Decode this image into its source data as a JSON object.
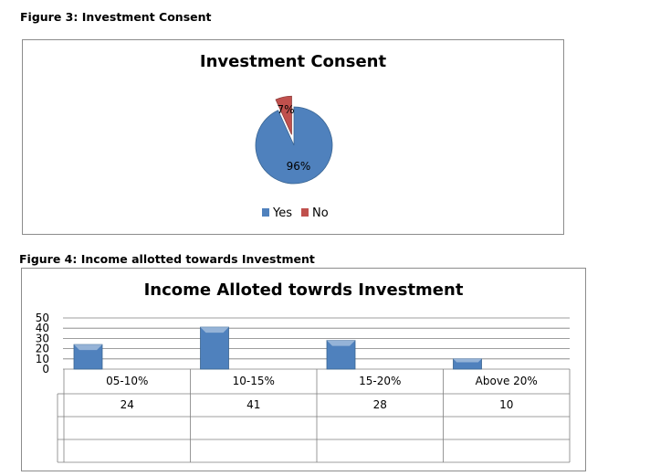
{
  "figure3": {
    "caption": "Figure 3:  Investment Consent",
    "chart_data": {
      "type": "pie",
      "title": "Investment Consent",
      "slices": [
        {
          "name": "Yes",
          "label": "96%",
          "value": 96,
          "color": "#4f81bd"
        },
        {
          "name": "No",
          "label": "7%",
          "value": 7,
          "color": "#c0504d"
        }
      ],
      "legend": "bottom"
    }
  },
  "figure4": {
    "caption": "Figure 4: Income allotted towards Investment",
    "chart_data": {
      "type": "bar",
      "title": "Income Alloted towrds Investment",
      "categories": [
        "05-10%",
        "10-15%",
        "15-20%",
        "Above 20%"
      ],
      "values": [
        24,
        41,
        28,
        10
      ],
      "value_labels": [
        "24",
        "41",
        "28",
        "10"
      ],
      "yticks": [
        "50",
        "40",
        "30",
        "20",
        "10",
        "0"
      ],
      "ylim": [
        0,
        50
      ],
      "grid": true,
      "bar_color": "#4f81bd",
      "data_table": true
    }
  }
}
